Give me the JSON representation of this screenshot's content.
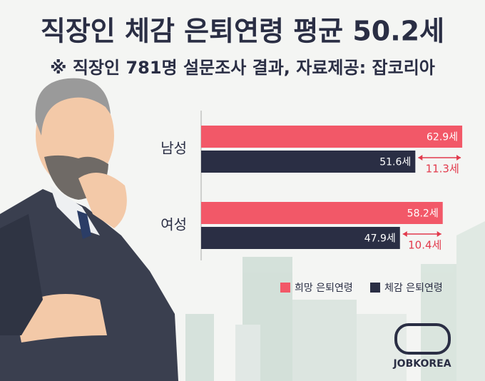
{
  "chart_data": {
    "type": "hbar",
    "title": "직장인 체감 은퇴연령 평균 50.2세",
    "subtitle": "※ 직장인 781명 설문조사 결과,  자료제공: 잡코리아",
    "categories": [
      "남성",
      "여성"
    ],
    "series": [
      {
        "name": "희망 은퇴연령",
        "color": "#f25868",
        "values": [
          62.9,
          58.2
        ],
        "value_labels": [
          "62.9세",
          "58.2세"
        ]
      },
      {
        "name": "체감 은퇴연령",
        "color": "#2a2e44",
        "values": [
          51.6,
          47.9
        ],
        "value_labels": [
          "51.6세",
          "47.9세"
        ]
      }
    ],
    "annotations": [
      "11.3세",
      "10.4세"
    ],
    "legend": "bottom-right"
  },
  "logo": "JOBKOREA"
}
